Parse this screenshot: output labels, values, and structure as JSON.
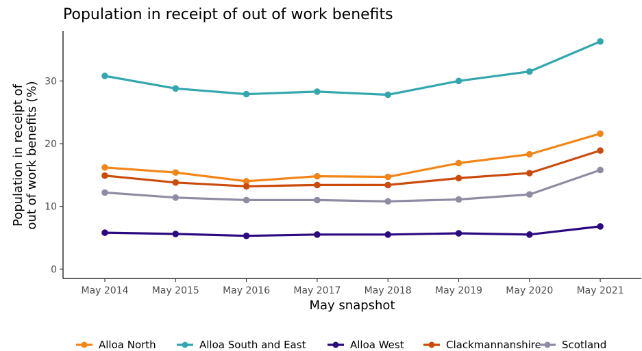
{
  "chart_data": {
    "type": "line",
    "title": "Population in receipt of out of work benefits",
    "xlabel": "May snapshot",
    "ylabel": "Population in receipt of out of work benefits (%)",
    "ylabel_lines": [
      "Population in receipt of",
      "out of work benefits (%)"
    ],
    "categories": [
      "May 2014",
      "May 2015",
      "May 2016",
      "May 2017",
      "May 2018",
      "May 2019",
      "May 2020",
      "May 2021"
    ],
    "ylim": [
      -1.5,
      38
    ],
    "yticks": [
      0,
      10,
      20,
      30
    ],
    "grid": false,
    "legend_position": "bottom",
    "series": [
      {
        "name": "Alloa North",
        "color": "#F28518",
        "values": [
          16.2,
          15.4,
          14.0,
          14.8,
          14.7,
          16.9,
          18.3,
          21.6
        ]
      },
      {
        "name": "Alloa South and East",
        "color": "#33A6AE",
        "values": [
          30.8,
          28.8,
          27.9,
          28.3,
          27.8,
          30.0,
          31.5,
          36.3
        ]
      },
      {
        "name": "Alloa West",
        "color": "#2B0A80",
        "values": [
          5.8,
          5.6,
          5.3,
          5.5,
          5.5,
          5.7,
          5.5,
          6.8
        ]
      },
      {
        "name": "Clackmannanshire",
        "color": "#CA4B0C",
        "values": [
          14.9,
          13.8,
          13.2,
          13.4,
          13.4,
          14.5,
          15.3,
          18.9
        ]
      },
      {
        "name": "Scotland",
        "color": "#8E8CA3",
        "values": [
          12.2,
          11.4,
          11.0,
          11.0,
          10.8,
          11.1,
          11.9,
          15.8
        ]
      }
    ]
  }
}
